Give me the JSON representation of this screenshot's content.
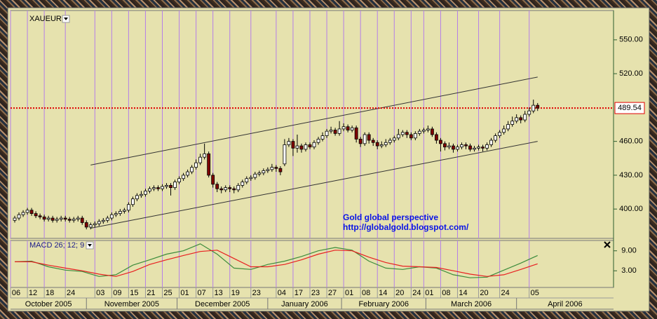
{
  "chart_data": [
    {
      "type": "candlestick",
      "symbol": "XAUEUR",
      "annotations": [
        "Gold global perspective",
        "http://globalgold.blogspot.com/"
      ],
      "xlim": [
        -1,
        142
      ],
      "ylim": [
        374,
        576
      ],
      "yticks": [
        {
          "value": 400,
          "label": "400.00"
        },
        {
          "value": 430,
          "label": "430.00"
        },
        {
          "value": 460,
          "label": "460.00"
        },
        {
          "value": 520,
          "label": "520.00"
        },
        {
          "value": 550,
          "label": "550.00"
        }
      ],
      "last_price": 489.54,
      "up_color": "#ffffff",
      "down_color": "#800000",
      "grid_color": "#b57fe8",
      "last_price_color": "#e00000",
      "xticks": [
        {
          "value": -1,
          "label": "06"
        },
        {
          "value": 3,
          "label": "12"
        },
        {
          "value": 7,
          "label": "18"
        },
        {
          "value": 12,
          "label": "24"
        },
        {
          "value": 19,
          "label": "03"
        },
        {
          "value": 23,
          "label": "09"
        },
        {
          "value": 27,
          "label": "15"
        },
        {
          "value": 31,
          "label": "21"
        },
        {
          "value": 35,
          "label": "25"
        },
        {
          "value": 39,
          "label": "01"
        },
        {
          "value": 43,
          "label": "07"
        },
        {
          "value": 47,
          "label": "13"
        },
        {
          "value": 51,
          "label": "19"
        },
        {
          "value": 56,
          "label": "23"
        },
        {
          "value": 62,
          "label": "04"
        },
        {
          "value": 66,
          "label": "17"
        },
        {
          "value": 70,
          "label": "23"
        },
        {
          "value": 74,
          "label": "27"
        },
        {
          "value": 78,
          "label": "01"
        },
        {
          "value": 82,
          "label": "08"
        },
        {
          "value": 86,
          "label": "14"
        },
        {
          "value": 90,
          "label": "20"
        },
        {
          "value": 94,
          "label": "24"
        },
        {
          "value": 97,
          "label": "01"
        },
        {
          "value": 101,
          "label": "08"
        },
        {
          "value": 105,
          "label": "14"
        },
        {
          "value": 110,
          "label": "20"
        },
        {
          "value": 115,
          "label": "24"
        },
        {
          "value": 122,
          "label": "05"
        }
      ],
      "months": [
        {
          "value": -1,
          "label": "October 2005"
        },
        {
          "value": 17,
          "label": "November 2005"
        },
        {
          "value": 38.5,
          "label": "December 2005"
        },
        {
          "value": 60,
          "label": "January 2006"
        },
        {
          "value": 77.5,
          "label": "February 2006"
        },
        {
          "value": 97.5,
          "label": "March 2006"
        },
        {
          "value": 119,
          "label": "April 2006"
        }
      ],
      "channel": [
        {
          "x": [
            18,
            124
          ],
          "y": [
            439,
            517
          ]
        },
        {
          "x": [
            18,
            124
          ],
          "y": [
            383,
            460
          ]
        }
      ],
      "ohlc": [
        [
          390,
          394,
          388,
          392
        ],
        [
          392,
          397,
          390,
          395
        ],
        [
          395,
          399,
          393,
          397
        ],
        [
          397,
          401,
          395,
          399
        ],
        [
          399,
          401,
          394,
          396
        ],
        [
          396,
          398,
          392,
          394
        ],
        [
          394,
          396,
          391,
          393
        ],
        [
          393,
          395,
          389,
          391
        ],
        [
          391,
          394,
          389,
          392
        ],
        [
          392,
          394,
          388,
          390
        ],
        [
          390,
          393,
          388,
          391
        ],
        [
          391,
          394,
          389,
          392
        ],
        [
          392,
          394,
          389,
          391
        ],
        [
          391,
          393,
          388,
          390
        ],
        [
          390,
          393,
          388,
          391
        ],
        [
          391,
          394,
          389,
          392
        ],
        [
          392,
          394,
          386,
          388
        ],
        [
          388,
          390,
          382,
          384
        ],
        [
          384,
          388,
          382,
          386
        ],
        [
          386,
          389,
          384,
          387
        ],
        [
          387,
          391,
          385,
          389
        ],
        [
          389,
          392,
          387,
          390
        ],
        [
          390,
          394,
          388,
          392
        ],
        [
          392,
          397,
          390,
          395
        ],
        [
          395,
          398,
          393,
          396
        ],
        [
          396,
          400,
          394,
          398
        ],
        [
          398,
          401,
          396,
          399
        ],
        [
          399,
          406,
          397,
          404
        ],
        [
          404,
          411,
          402,
          409
        ],
        [
          409,
          414,
          407,
          412
        ],
        [
          412,
          416,
          410,
          413
        ],
        [
          413,
          418,
          411,
          416
        ],
        [
          416,
          420,
          414,
          418
        ],
        [
          418,
          421,
          416,
          419
        ],
        [
          419,
          421,
          416,
          418
        ],
        [
          418,
          422,
          416,
          420
        ],
        [
          420,
          423,
          418,
          421
        ],
        [
          421,
          423,
          412,
          419
        ],
        [
          419,
          426,
          417,
          424
        ],
        [
          424,
          429,
          422,
          427
        ],
        [
          427,
          432,
          425,
          430
        ],
        [
          430,
          435,
          428,
          433
        ],
        [
          433,
          439,
          431,
          437
        ],
        [
          437,
          444,
          435,
          441
        ],
        [
          441,
          449,
          439,
          446
        ],
        [
          446,
          458,
          444,
          449
        ],
        [
          449,
          451,
          428,
          430
        ],
        [
          430,
          432,
          419,
          422
        ],
        [
          422,
          424,
          415,
          418
        ],
        [
          418,
          420,
          414,
          417
        ],
        [
          417,
          421,
          415,
          419
        ],
        [
          419,
          421,
          415,
          418
        ],
        [
          418,
          420,
          414,
          417
        ],
        [
          417,
          423,
          415,
          421
        ],
        [
          421,
          426,
          419,
          424
        ],
        [
          424,
          429,
          422,
          427
        ],
        [
          427,
          430,
          425,
          428
        ],
        [
          428,
          433,
          426,
          431
        ],
        [
          431,
          434,
          429,
          432
        ],
        [
          432,
          436,
          430,
          434
        ],
        [
          434,
          437,
          432,
          435
        ],
        [
          435,
          440,
          433,
          437
        ],
        [
          437,
          439,
          433,
          436
        ],
        [
          436,
          438,
          430,
          433
        ],
        [
          440,
          462,
          438,
          457
        ],
        [
          457,
          463,
          455,
          460
        ],
        [
          460,
          462,
          447,
          454
        ],
        [
          454,
          466,
          450,
          456
        ],
        [
          456,
          458,
          450,
          453
        ],
        [
          453,
          459,
          451,
          457
        ],
        [
          457,
          459,
          453,
          455
        ],
        [
          455,
          461,
          453,
          459
        ],
        [
          459,
          464,
          457,
          462
        ],
        [
          462,
          468,
          460,
          465
        ],
        [
          465,
          471,
          463,
          469
        ],
        [
          469,
          473,
          467,
          470
        ],
        [
          470,
          472,
          465,
          467
        ],
        [
          467,
          478,
          465,
          471
        ],
        [
          471,
          476,
          469,
          473
        ],
        [
          473,
          475,
          468,
          470
        ],
        [
          470,
          474,
          468,
          472
        ],
        [
          472,
          474,
          459,
          462
        ],
        [
          462,
          464,
          455,
          458
        ],
        [
          458,
          468,
          456,
          466
        ],
        [
          466,
          468,
          458,
          461
        ],
        [
          461,
          463,
          456,
          459
        ],
        [
          459,
          461,
          453,
          456
        ],
        [
          456,
          460,
          454,
          457
        ],
        [
          457,
          462,
          455,
          459
        ],
        [
          459,
          463,
          457,
          461
        ],
        [
          461,
          465,
          459,
          463
        ],
        [
          463,
          471,
          461,
          466
        ],
        [
          466,
          470,
          464,
          468
        ],
        [
          468,
          470,
          463,
          466
        ],
        [
          466,
          468,
          461,
          463
        ],
        [
          463,
          469,
          461,
          467
        ],
        [
          467,
          471,
          465,
          469
        ],
        [
          469,
          472,
          467,
          470
        ],
        [
          470,
          474,
          468,
          471
        ],
        [
          471,
          473,
          464,
          466
        ],
        [
          466,
          468,
          458,
          461
        ],
        [
          461,
          463,
          451,
          458
        ],
        [
          458,
          460,
          452,
          455
        ],
        [
          455,
          459,
          453,
          456
        ],
        [
          456,
          458,
          450,
          453
        ],
        [
          453,
          457,
          451,
          455
        ],
        [
          455,
          459,
          453,
          457
        ],
        [
          457,
          459,
          453,
          456
        ],
        [
          456,
          458,
          451,
          453
        ],
        [
          453,
          456,
          451,
          454
        ],
        [
          454,
          457,
          452,
          455
        ],
        [
          455,
          457,
          451,
          454
        ],
        [
          454,
          459,
          452,
          457
        ],
        [
          457,
          463,
          455,
          461
        ],
        [
          461,
          467,
          459,
          465
        ],
        [
          465,
          470,
          463,
          468
        ],
        [
          468,
          474,
          466,
          471
        ],
        [
          471,
          478,
          469,
          475
        ],
        [
          475,
          482,
          473,
          478
        ],
        [
          478,
          484,
          476,
          481
        ],
        [
          481,
          483,
          476,
          479
        ],
        [
          479,
          487,
          477,
          484
        ],
        [
          484,
          490,
          482,
          487
        ],
        [
          487,
          497,
          485,
          492
        ],
        [
          492,
          494,
          487,
          489.54
        ]
      ]
    },
    {
      "type": "line",
      "title": "MACD 26; 12; 9",
      "xlim": [
        -1,
        142
      ],
      "ylim": [
        -2,
        12.1
      ],
      "yticks": [
        {
          "value": 3,
          "label": "3.00"
        },
        {
          "value": 9,
          "label": "9.00"
        }
      ],
      "x": [
        0,
        4,
        8,
        12,
        16,
        20,
        24,
        28,
        32,
        36,
        40,
        44,
        48,
        52,
        56,
        60,
        64,
        68,
        72,
        76,
        80,
        84,
        88,
        92,
        96,
        100,
        104,
        108,
        112,
        116,
        120,
        124
      ],
      "series": [
        {
          "color": "#3c8c3c",
          "values": [
            5.7,
            5.9,
            4.2,
            3.2,
            2.8,
            1.3,
            1.8,
            4.7,
            6.3,
            8.0,
            9,
            11.1,
            8,
            3.8,
            3.4,
            4.9,
            5.9,
            7.3,
            9,
            10,
            9.2,
            5.9,
            3.8,
            3.4,
            4.2,
            3.8,
            1.8,
            0.9,
            1.1,
            3.2,
            5.3,
            7.6
          ]
        },
        {
          "color": "#e82020",
          "values": [
            5.7,
            5.7,
            4.7,
            3.8,
            3.0,
            2.0,
            1.3,
            2.8,
            4.9,
            6.3,
            7.6,
            8.8,
            9.2,
            6.7,
            4.2,
            4.2,
            4.9,
            6.3,
            8.0,
            9.2,
            9.0,
            7.1,
            5.5,
            4.4,
            4.2,
            4.0,
            3.0,
            2.0,
            1.3,
            1.8,
            3.4,
            5.1
          ]
        }
      ]
    }
  ]
}
